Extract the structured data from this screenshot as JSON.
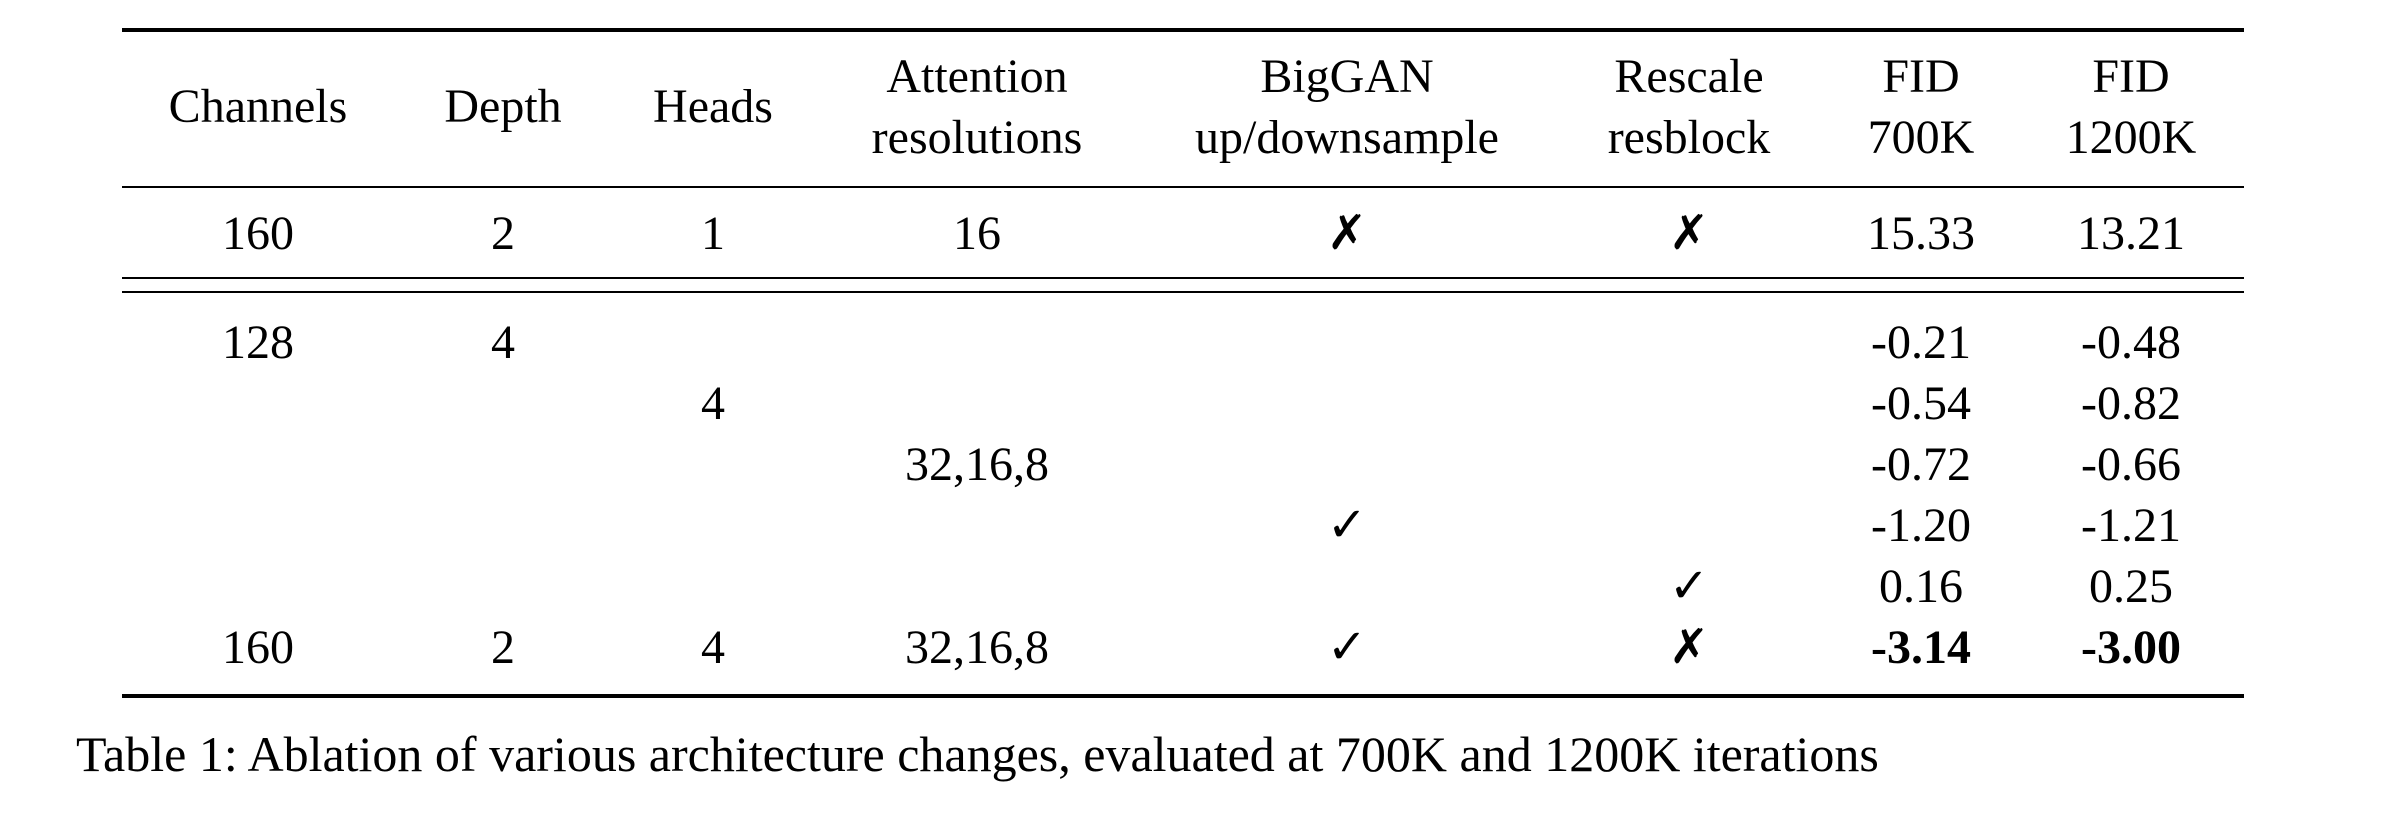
{
  "table": {
    "header": [
      [
        "Channels"
      ],
      [
        "Depth"
      ],
      [
        "Heads"
      ],
      [
        "Attention",
        "resolutions"
      ],
      [
        "BigGAN",
        "up/downsample"
      ],
      [
        "Rescale",
        "resblock"
      ],
      [
        "FID",
        "700K"
      ],
      [
        "FID",
        "1200K"
      ]
    ],
    "baseline": [
      "160",
      "2",
      "1",
      "16",
      "✗",
      "✗",
      "15.33",
      "13.21"
    ],
    "rows": [
      [
        "128",
        "4",
        null,
        null,
        null,
        null,
        "-0.21",
        "-0.48"
      ],
      [
        null,
        null,
        "4",
        null,
        null,
        null,
        "-0.54",
        "-0.82"
      ],
      [
        null,
        null,
        null,
        "32,16,8",
        null,
        null,
        "-0.72",
        "-0.66"
      ],
      [
        null,
        null,
        null,
        null,
        "✓",
        null,
        "-1.20",
        "-1.21"
      ],
      [
        null,
        null,
        null,
        null,
        null,
        "✓",
        "0.16",
        "0.25"
      ],
      [
        "160",
        "2",
        "4",
        "32,16,8",
        "✓",
        "✗",
        "-3.14",
        "-3.00"
      ]
    ]
  },
  "caption": "Table 1: Ablation of various architecture changes, evaluated at 700K and 1200K iterations"
}
